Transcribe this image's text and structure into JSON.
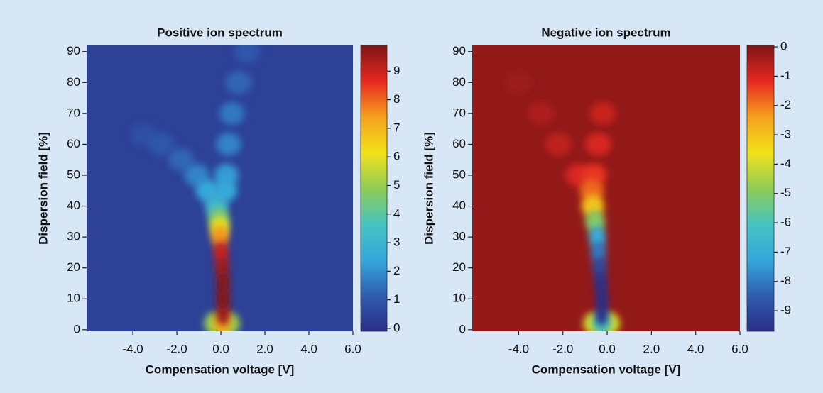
{
  "chart_data": [
    {
      "type": "heatmap",
      "title": "Positive ion spectrum",
      "x_label": "Compensation voltage [V]",
      "y_label": "Dispersion field [%]",
      "xlim": [
        -6.1,
        6.0
      ],
      "xticks": [
        {
          "value": -4,
          "label": "-4.0"
        },
        {
          "value": -2,
          "label": "-2.0"
        },
        {
          "value": 0,
          "label": "0.0"
        },
        {
          "value": 2,
          "label": "2.0"
        },
        {
          "value": 4,
          "label": "4.0"
        },
        {
          "value": 6,
          "label": "6.0"
        }
      ],
      "ylim": [
        -0.5,
        92
      ],
      "yticks": [
        0,
        10,
        20,
        30,
        40,
        50,
        60,
        70,
        80,
        90
      ],
      "zlim": [
        -0.1,
        9.9
      ],
      "zticks": [
        0,
        1,
        2,
        3,
        4,
        5,
        6,
        7,
        8,
        9
      ],
      "colormap": [
        "#2b2e86",
        "#2f5db0",
        "#35a7dc",
        "#47c4c0",
        "#8fcc55",
        "#f2e21a",
        "#f5a11d",
        "#e62821",
        "#7e1517"
      ],
      "background": 0.4,
      "points": {
        "x": [
          0.05,
          0.1,
          0.1,
          0.1,
          0.05,
          0.0,
          -0.05,
          -0.05,
          -0.1,
          -0.2,
          -0.6,
          -1.1,
          -1.8,
          -2.7,
          -3.5,
          0.2,
          0.25,
          0.35,
          0.5,
          0.8,
          1.2,
          -0.3,
          0.4
        ],
        "y": [
          2,
          5,
          10,
          15,
          20,
          25,
          30,
          33,
          36,
          40,
          45,
          50,
          55,
          60,
          63,
          45,
          50,
          60,
          70,
          80,
          90,
          2,
          2
        ],
        "values": [
          7,
          9.5,
          9.8,
          9.8,
          9.5,
          9,
          7.5,
          6,
          4.5,
          3,
          2.5,
          1.8,
          1.3,
          1,
          0.8,
          2.5,
          2.2,
          1.8,
          1.6,
          1.3,
          1,
          5,
          5
        ]
      }
    },
    {
      "type": "heatmap",
      "title": "Negative ion spectrum",
      "x_label": "Compensation voltage [V]",
      "y_label": "Dispersion field [%]",
      "xlim": [
        -6.1,
        6.0
      ],
      "xticks": [
        {
          "value": -4,
          "label": "-4.0"
        },
        {
          "value": -2,
          "label": "-2.0"
        },
        {
          "value": 0,
          "label": "0.0"
        },
        {
          "value": 2,
          "label": "2.0"
        },
        {
          "value": 4,
          "label": "4.0"
        },
        {
          "value": 6,
          "label": "6.0"
        }
      ],
      "ylim": [
        -0.5,
        92
      ],
      "yticks": [
        0,
        10,
        20,
        30,
        40,
        50,
        60,
        70,
        80,
        90
      ],
      "zlim": [
        -9.7,
        0.05
      ],
      "zticks": [
        0,
        -1,
        -2,
        -3,
        -4,
        -5,
        -6,
        -7,
        -8,
        -9
      ],
      "colormap": [
        "#2b2e86",
        "#2f5db0",
        "#35a7dc",
        "#47c4c0",
        "#8fcc55",
        "#f2e21a",
        "#f5a11d",
        "#e62821",
        "#7e1517"
      ],
      "background": -0.2,
      "points": {
        "x": [
          -0.25,
          -0.25,
          -0.25,
          -0.3,
          -0.35,
          -0.4,
          -0.45,
          -0.55,
          -0.65,
          -0.7,
          -0.6,
          -0.4,
          -0.2,
          -1.3,
          -2.2,
          -3.0,
          -4.0,
          -0.6,
          0.1
        ],
        "y": [
          2,
          5,
          10,
          15,
          20,
          25,
          30,
          35,
          40,
          45,
          50,
          60,
          70,
          50,
          60,
          70,
          80,
          2,
          2
        ],
        "values": [
          -6,
          -9.5,
          -9.7,
          -9.6,
          -9,
          -8,
          -7,
          -5,
          -3,
          -1.8,
          -1.3,
          -1,
          -0.8,
          -1,
          -0.7,
          -0.5,
          -0.3,
          -4,
          -4
        ]
      }
    }
  ]
}
